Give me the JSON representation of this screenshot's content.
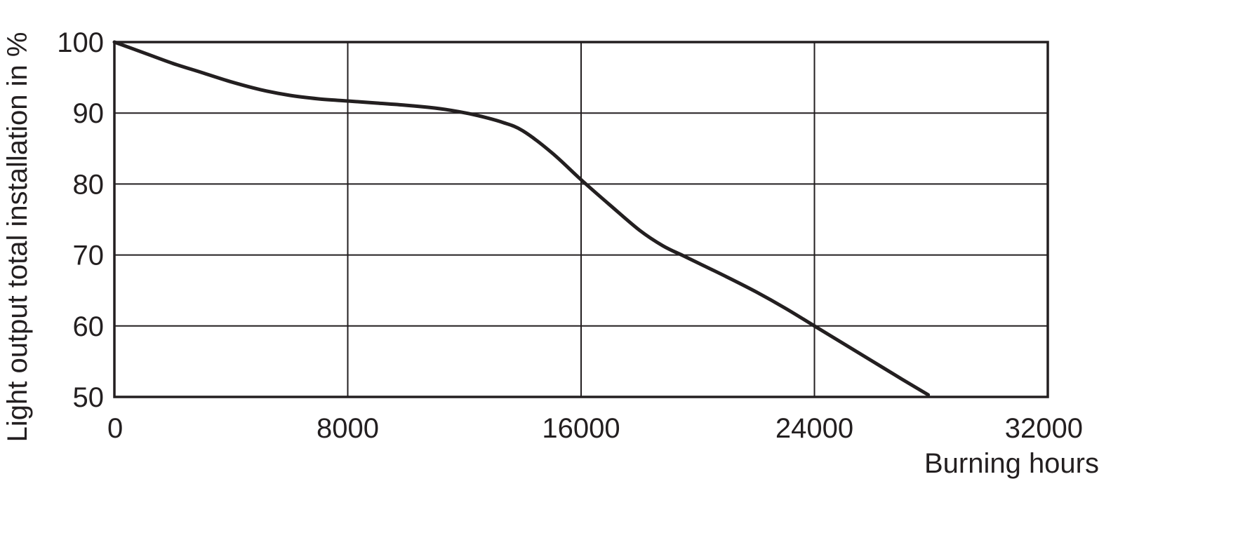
{
  "chart_data": {
    "type": "line",
    "title": "",
    "xlabel": "Burning hours",
    "ylabel": "Light output total installation in %",
    "xlim": [
      0,
      32000
    ],
    "ylim": [
      50,
      100
    ],
    "x_ticks": [
      0,
      8000,
      16000,
      24000,
      32000
    ],
    "y_ticks": [
      50,
      60,
      70,
      80,
      90,
      100
    ],
    "grid": true,
    "legend": "none",
    "colors": {
      "line": "#231f20",
      "grid": "#231f20",
      "text": "#231f20",
      "background": "#ffffff"
    },
    "series": [
      {
        "x": [
          0,
          1000,
          2000,
          3000,
          4000,
          5000,
          6000,
          7000,
          8000,
          9000,
          10000,
          11000,
          11800,
          12500,
          13300,
          14000,
          15000,
          16000,
          17000,
          18000,
          18800,
          19500,
          20000,
          21000,
          22000,
          23000,
          24000,
          25000,
          26000,
          27000,
          27900
        ],
        "y": [
          100,
          98.5,
          97,
          95.7,
          94.4,
          93.3,
          92.5,
          92.0,
          91.7,
          91.4,
          91.1,
          90.7,
          90.2,
          89.6,
          88.7,
          87.5,
          84.4,
          80.6,
          77.0,
          73.5,
          71.3,
          69.9,
          68.9,
          66.9,
          64.8,
          62.5,
          60.0,
          57.5,
          55.0,
          52.5,
          50.3
        ]
      }
    ]
  }
}
